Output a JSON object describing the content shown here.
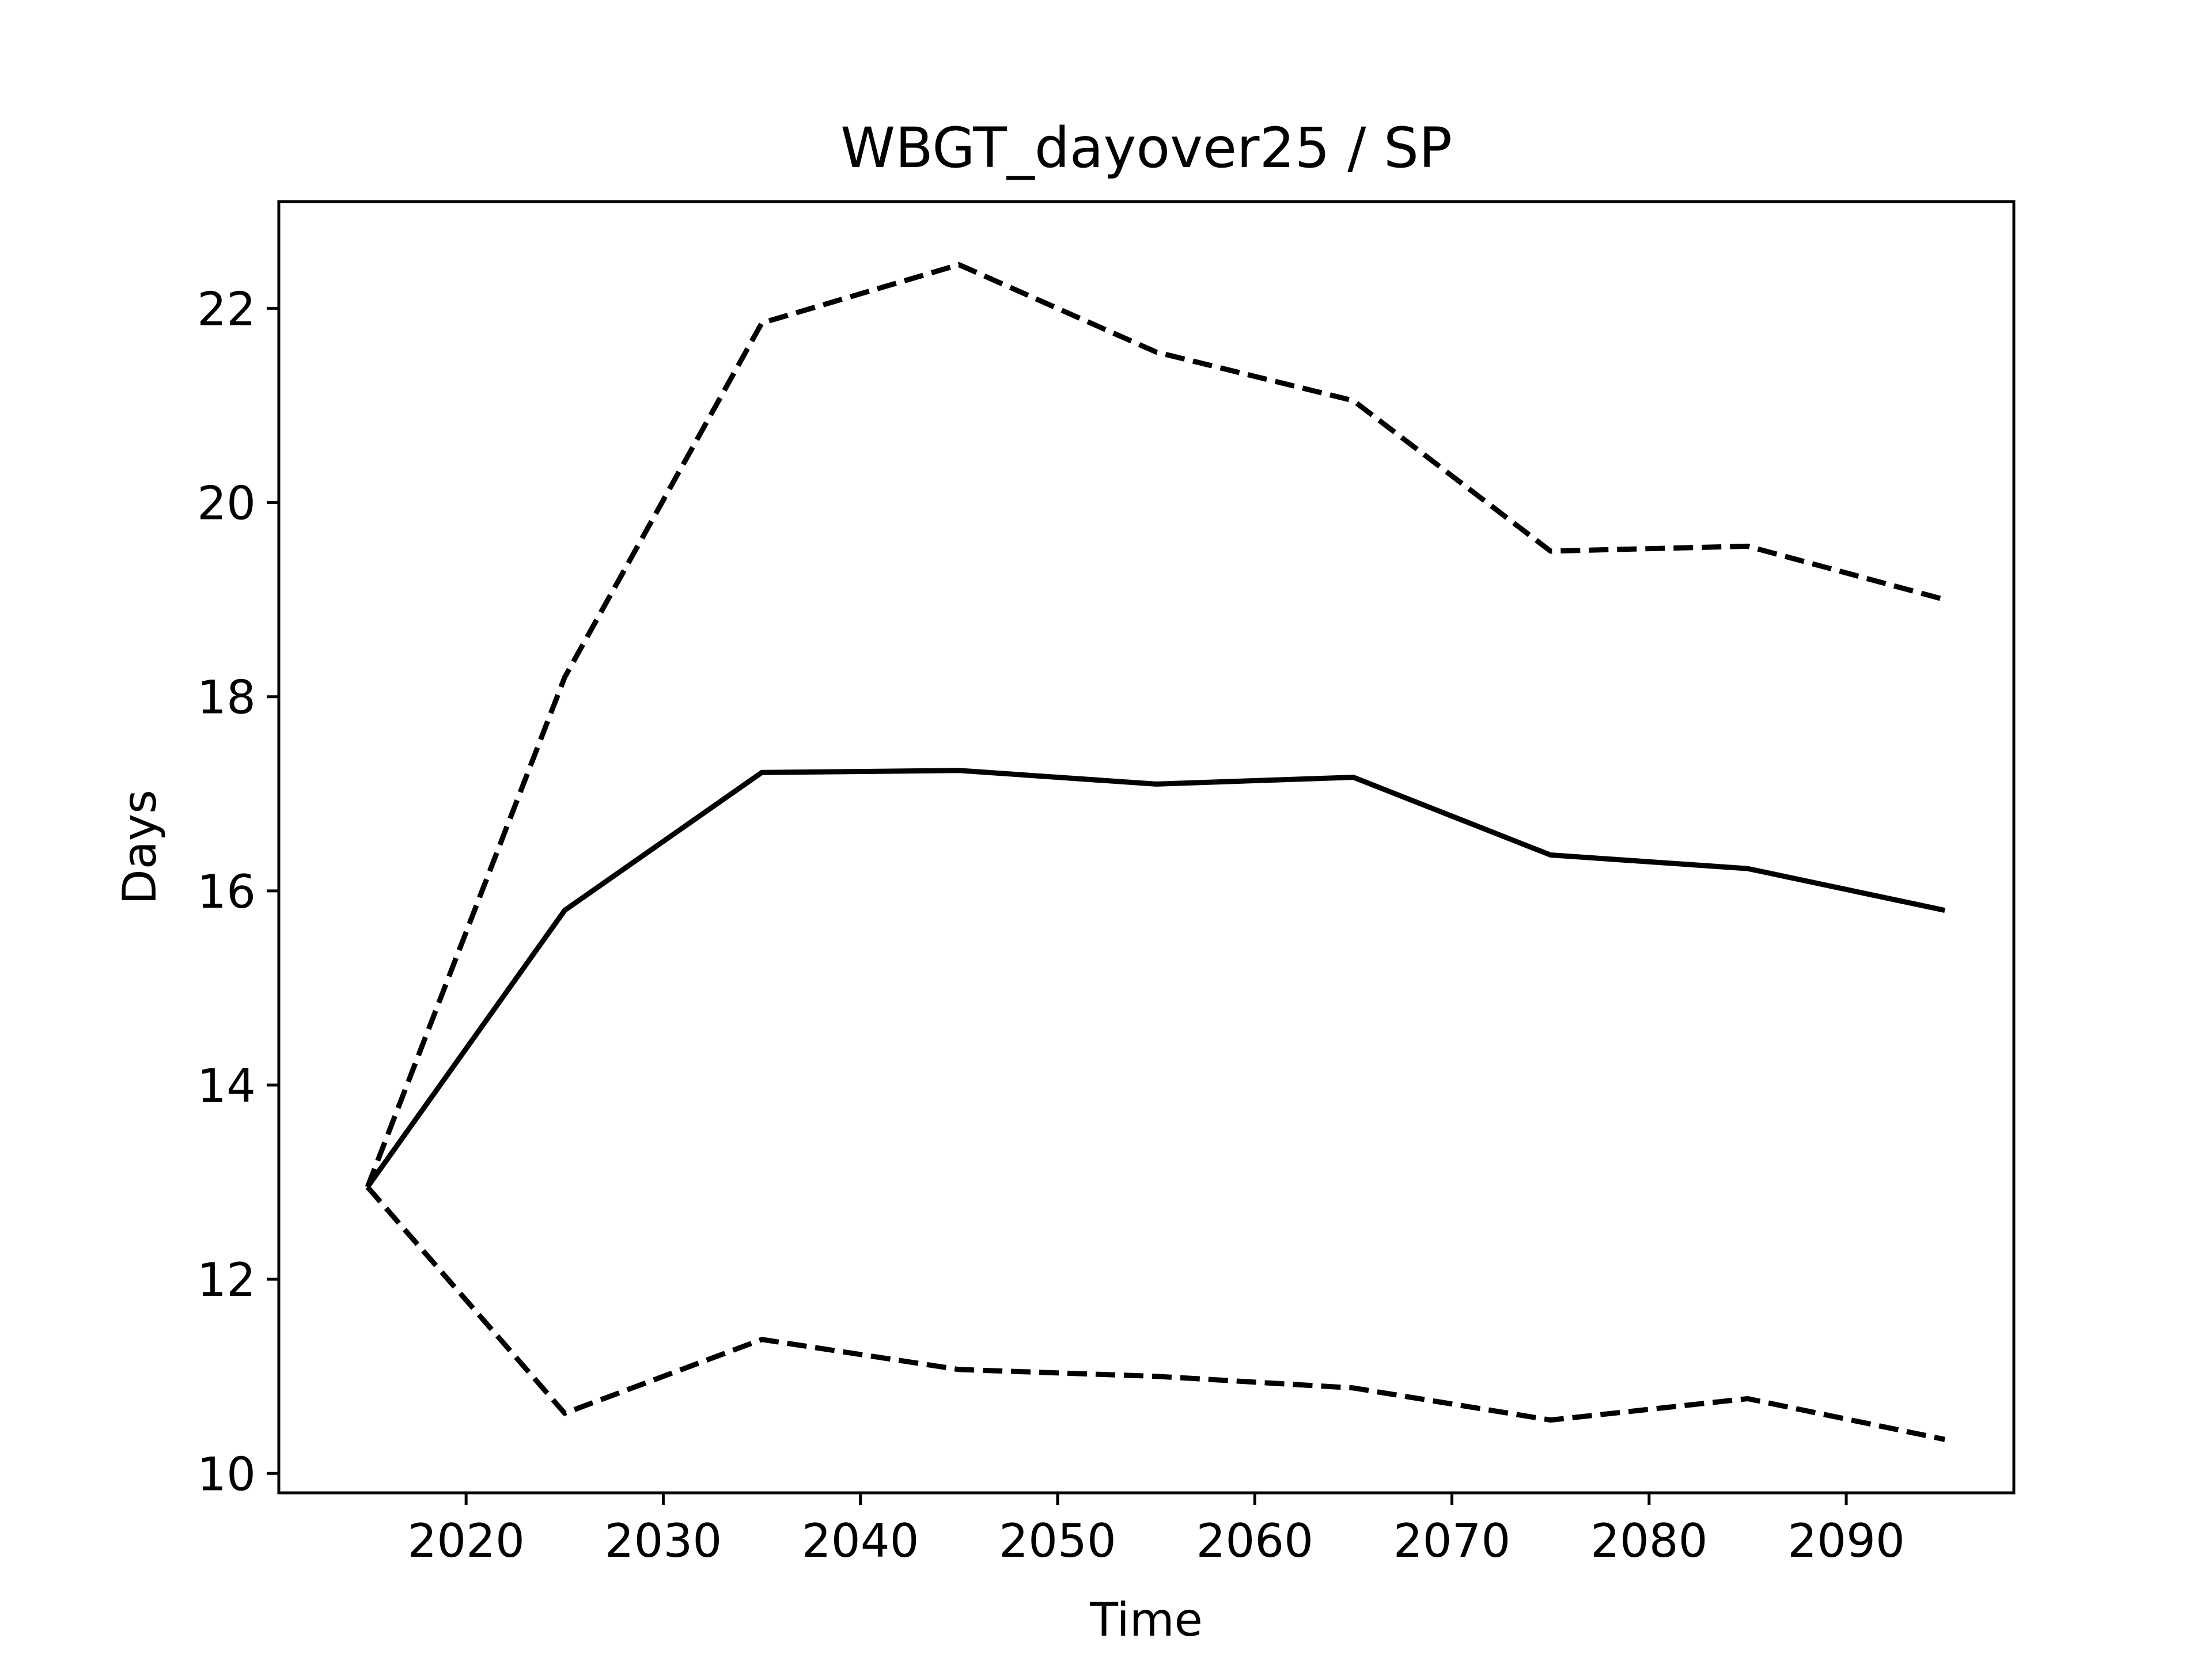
{
  "chart_data": {
    "type": "line",
    "title": "WBGT_dayover25 / SP",
    "xlabel": "Time",
    "ylabel": "Days",
    "xlim": [
      2010.5,
      2098.5
    ],
    "ylim": [
      9.8,
      23.1
    ],
    "xticks": [
      2020,
      2030,
      2040,
      2050,
      2060,
      2070,
      2080,
      2090
    ],
    "yticks": [
      10,
      12,
      14,
      16,
      18,
      20,
      22
    ],
    "x": [
      2015,
      2025,
      2035,
      2045,
      2055,
      2065,
      2075,
      2085,
      2095
    ],
    "series": [
      {
        "style": "dashed",
        "color": "#000000",
        "values": [
          12.95,
          18.2,
          21.85,
          22.45,
          21.55,
          21.05,
          19.5,
          19.55,
          19.0
        ]
      },
      {
        "style": "solid",
        "color": "#000000",
        "values": [
          12.95,
          15.8,
          17.22,
          17.24,
          17.1,
          17.17,
          16.37,
          16.23,
          15.8
        ]
      },
      {
        "style": "dashed",
        "color": "#000000",
        "values": [
          12.95,
          10.62,
          11.38,
          11.07,
          11.0,
          10.88,
          10.55,
          10.77,
          10.35
        ]
      }
    ],
    "grid": false,
    "legend": false
  }
}
